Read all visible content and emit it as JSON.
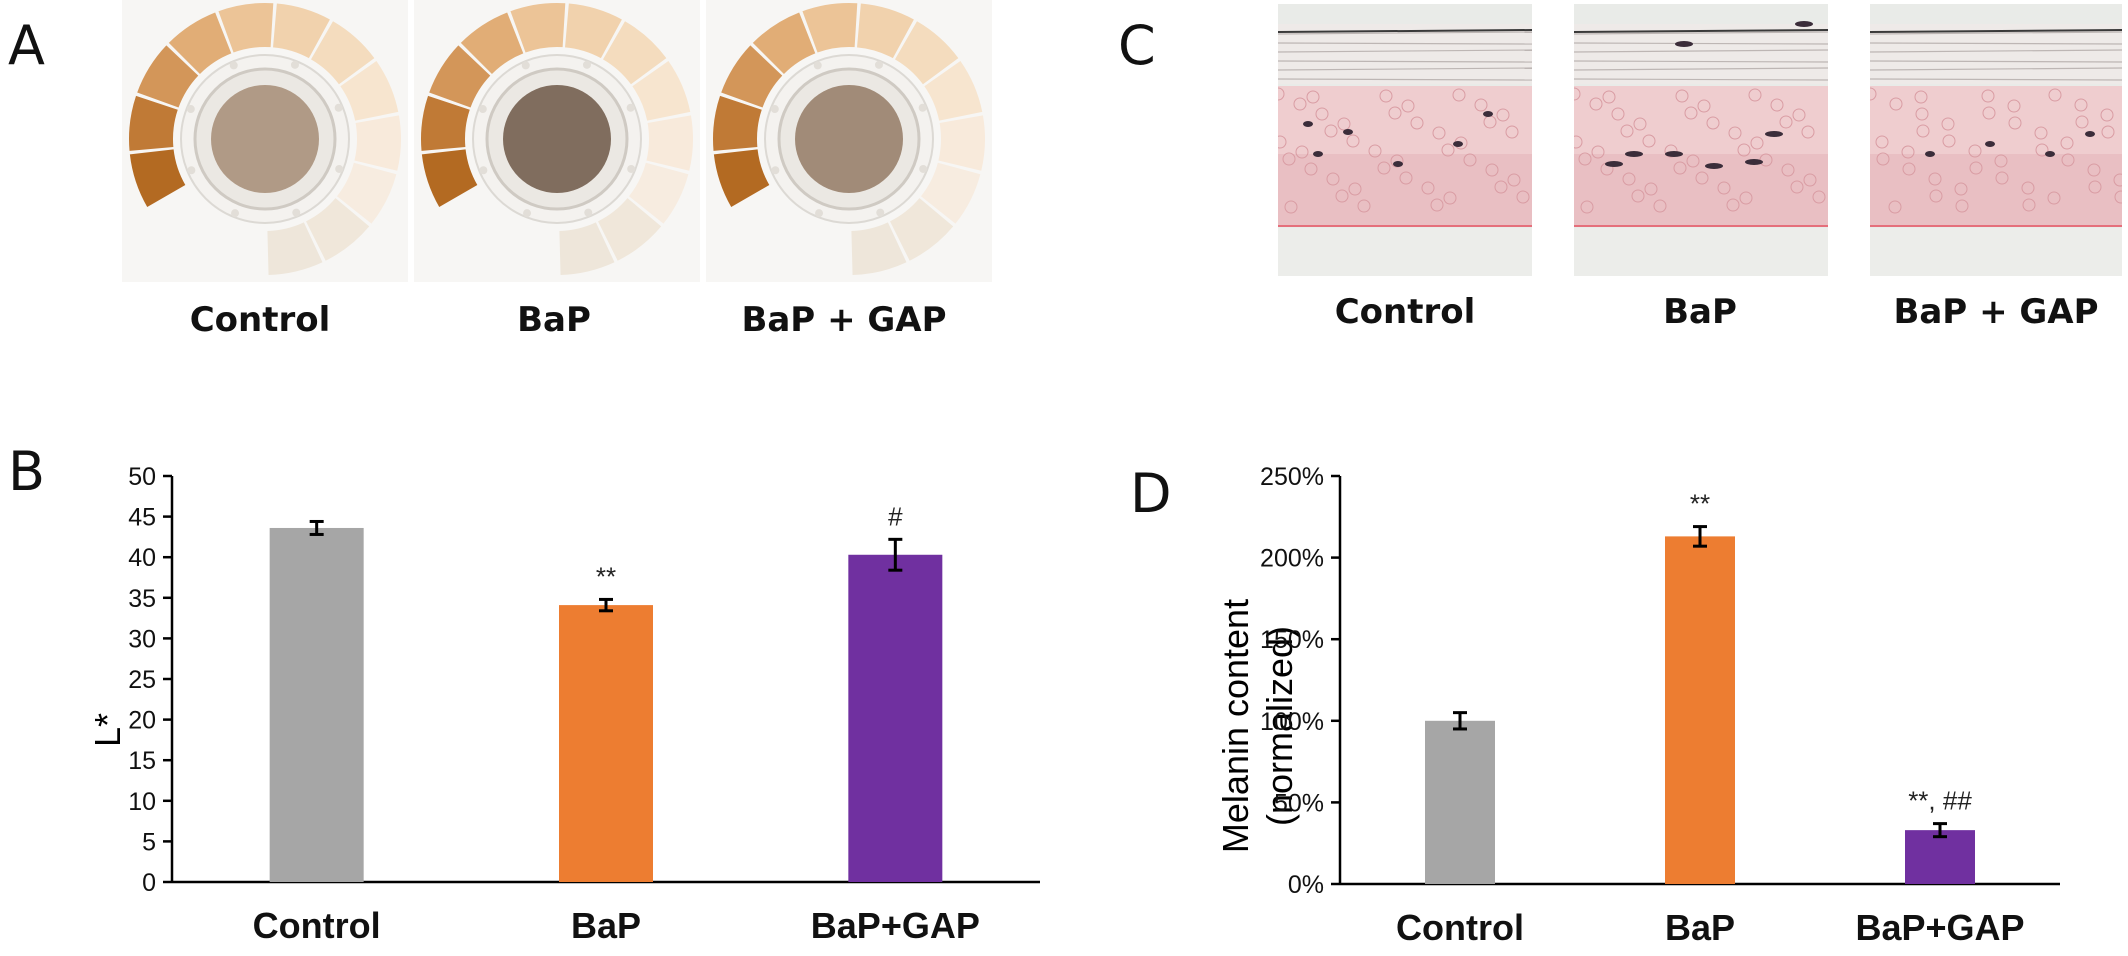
{
  "panels": {
    "a": {
      "letter": "A",
      "labels": [
        "Control",
        "BaP",
        "BaP + GAP"
      ],
      "disc_colors": [
        "#b09a86",
        "#806d5e",
        "#a18b78"
      ],
      "scale_colors": [
        "#b36a22",
        "#c07a36",
        "#d39659",
        "#e1ad76",
        "#ecc497",
        "#f1d2ad",
        "#f4dcbe",
        "#f7e5cf",
        "#f8eadb",
        "#f7ece0",
        "#f0e7da",
        "#eee6da"
      ]
    },
    "c": {
      "letter": "C",
      "labels": [
        "Control",
        "BaP",
        "BaP + GAP"
      ]
    },
    "b": {
      "letter": "B"
    },
    "d": {
      "letter": "D"
    }
  },
  "chart_data": [
    {
      "type": "bar",
      "panel": "B",
      "categories": [
        "Control",
        "BaP",
        "BaP+GAP"
      ],
      "values": [
        43.6,
        34.1,
        40.3
      ],
      "errors": [
        0.8,
        0.7,
        1.9
      ],
      "significance": [
        "",
        "**",
        "#"
      ],
      "colors": [
        "#a6a6a6",
        "#ed7d31",
        "#7030a0"
      ],
      "ylabel": "L*",
      "ylim": [
        0,
        50
      ],
      "yticks": [
        "0",
        "5",
        "10",
        "15",
        "20",
        "25",
        "30",
        "35",
        "40",
        "45",
        "50"
      ],
      "grid": false
    },
    {
      "type": "bar",
      "panel": "D",
      "categories": [
        "Control",
        "BaP",
        "BaP+GAP"
      ],
      "values": [
        100,
        213,
        33
      ],
      "errors": [
        5,
        6,
        4
      ],
      "significance": [
        "",
        "**",
        "**, ##"
      ],
      "colors": [
        "#a6a6a6",
        "#ed7d31",
        "#7030a0"
      ],
      "ylabel": [
        "Melanin content",
        "(normalized)"
      ],
      "ylim": [
        0,
        250
      ],
      "yticks": [
        "0%",
        "50%",
        "100%",
        "150%",
        "200%",
        "250%"
      ],
      "grid": false
    }
  ]
}
